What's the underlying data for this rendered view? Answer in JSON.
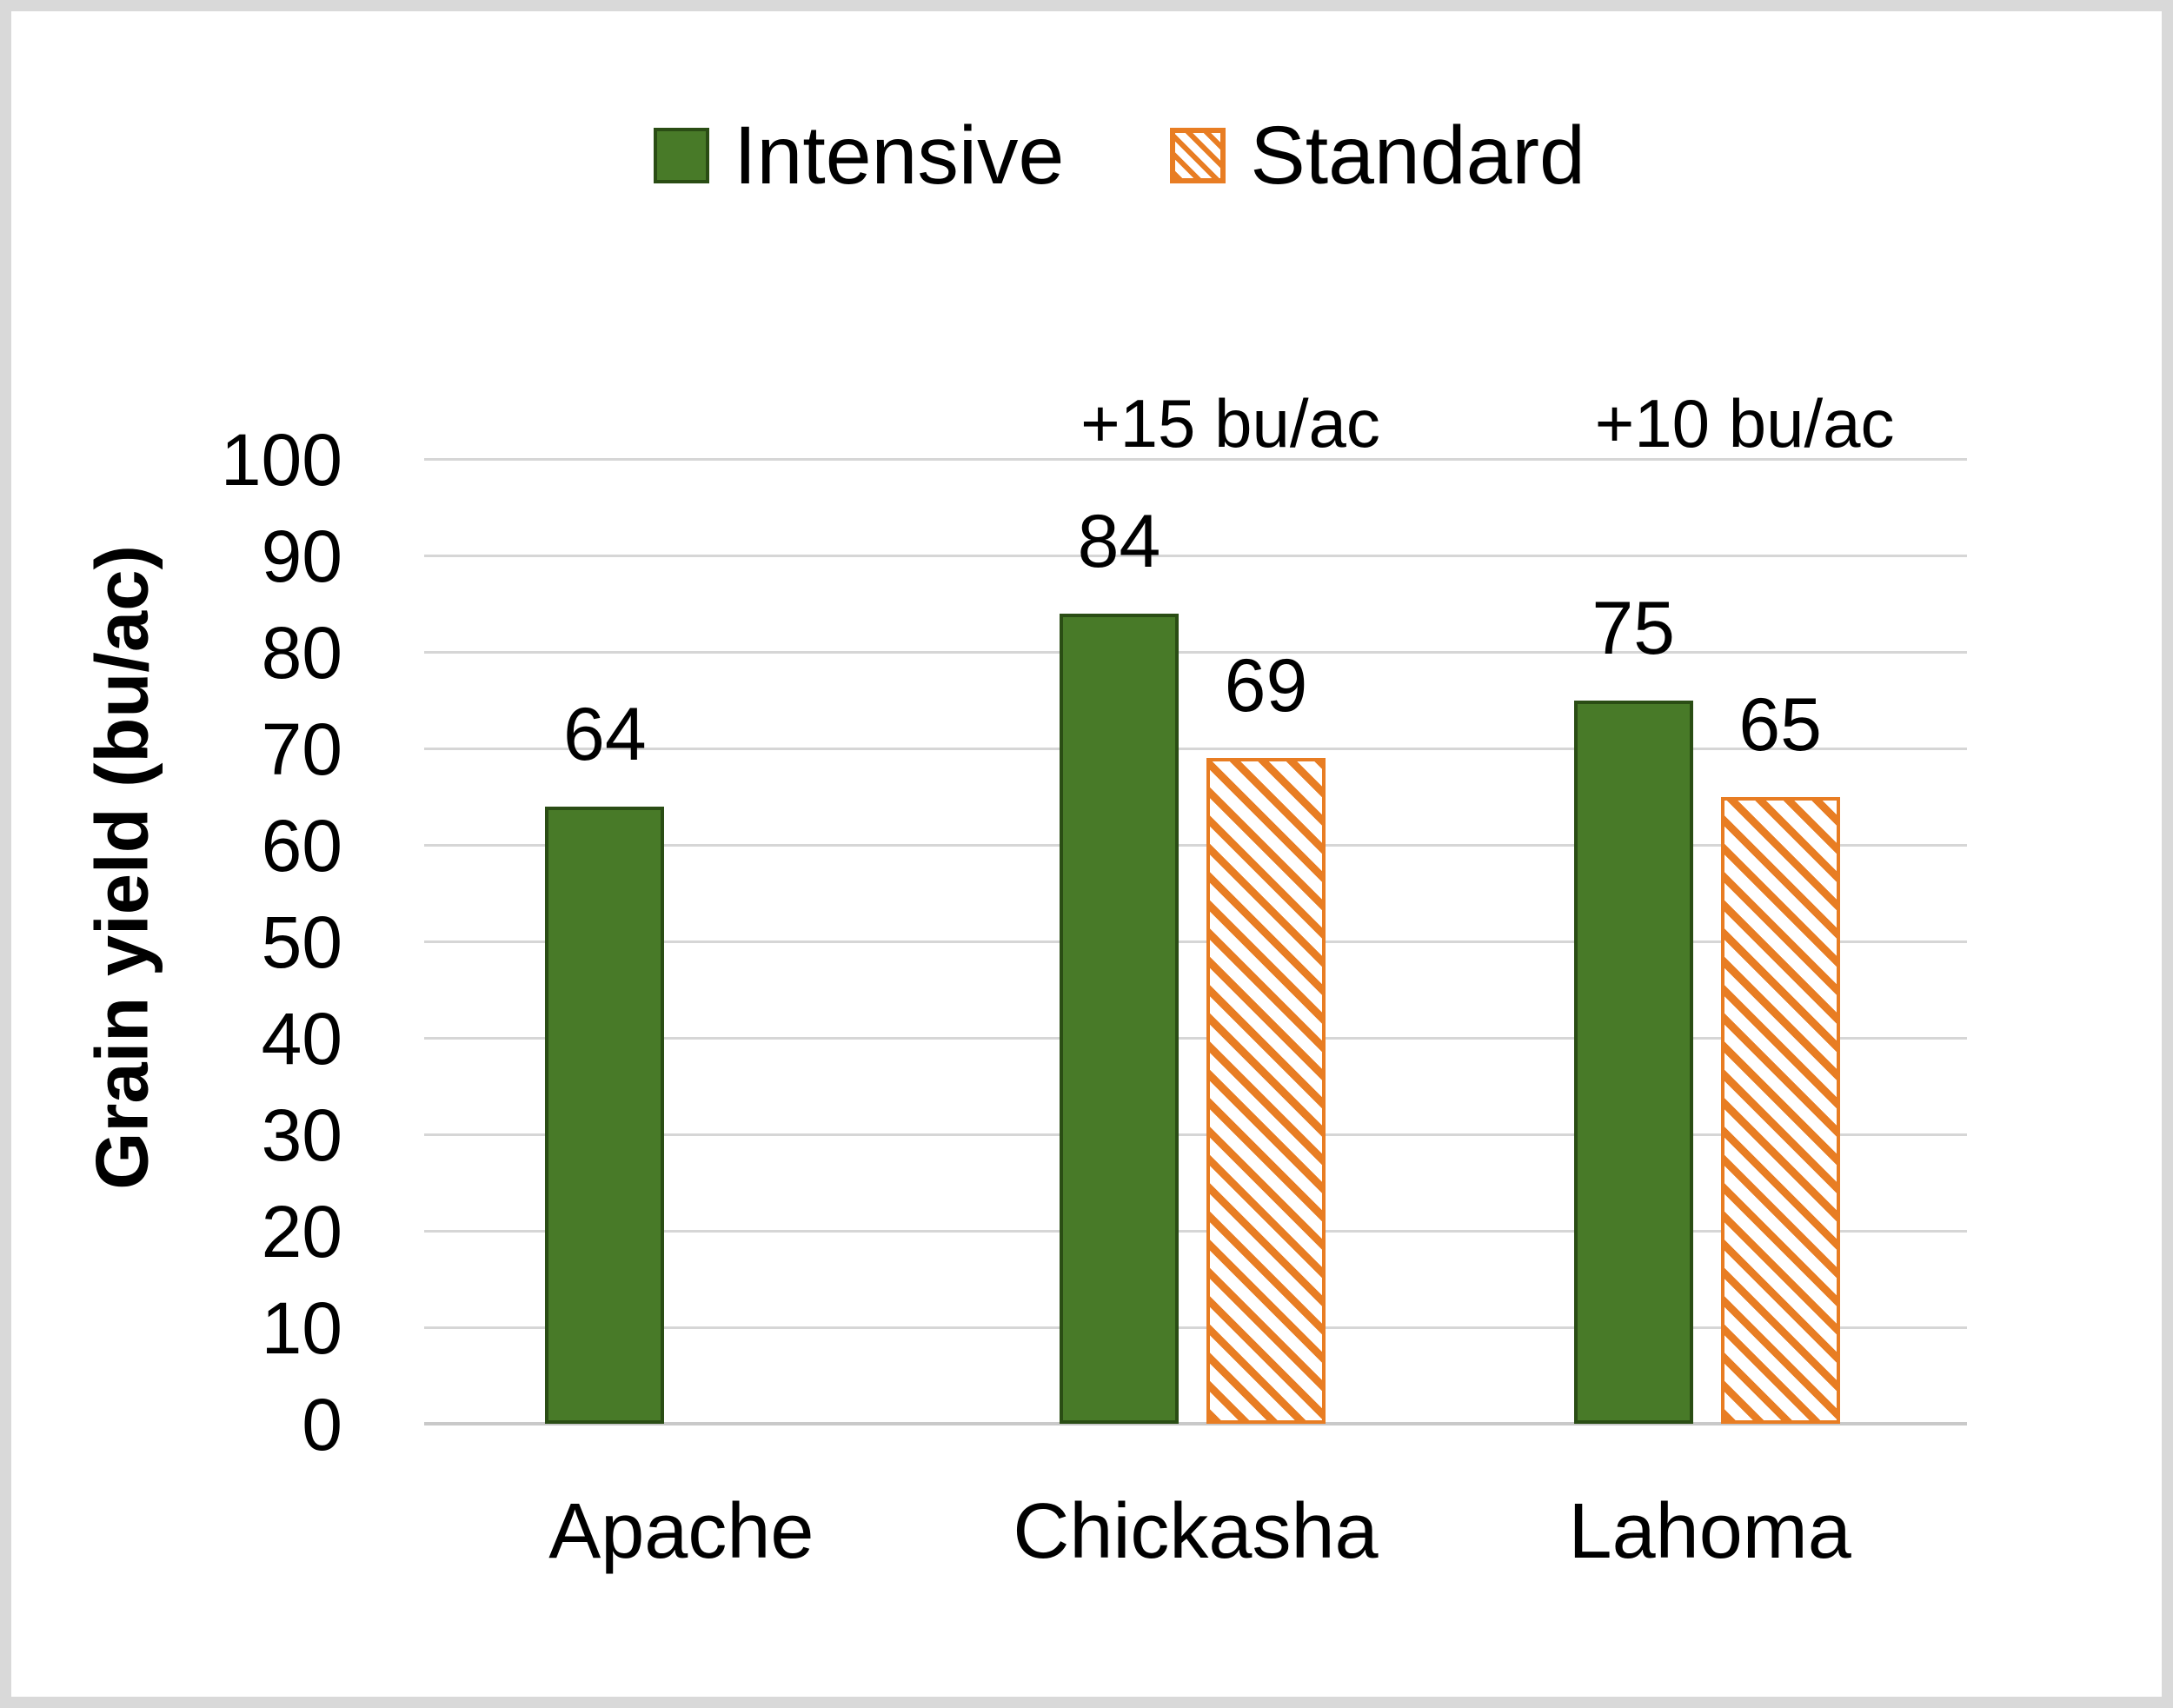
{
  "page": {
    "background": "#ffffff",
    "frame_border_color": "#d9d9d9"
  },
  "legend": {
    "position": "top-center",
    "items": [
      {
        "label": "Intensive",
        "swatch": "solid",
        "color": "#487a28"
      },
      {
        "label": "Standard",
        "swatch": "diagonal-hatch",
        "color": "#e87d23"
      }
    ]
  },
  "chart_data": {
    "type": "bar",
    "title": "",
    "xlabel": "",
    "ylabel": "Grain yield (bu/ac)",
    "ylim": [
      0,
      100
    ],
    "yticks": [
      0,
      10,
      20,
      30,
      40,
      50,
      60,
      70,
      80,
      90,
      100
    ],
    "grid": true,
    "legend_position": "top-center",
    "categories": [
      "Apache",
      "Chickasha",
      "Lahoma"
    ],
    "series": [
      {
        "name": "Intensive",
        "pattern": "solid",
        "fill": "#487a28",
        "border": "#2a4d14",
        "values": [
          64,
          84,
          75
        ]
      },
      {
        "name": "Standard",
        "pattern": "diagonal-hatch",
        "fill": "#e87d23",
        "border": "#e87d23",
        "values": [
          null,
          69,
          65
        ]
      }
    ],
    "bar_value_labels_shown": true,
    "annotations": [
      {
        "category": "Chickasha",
        "text": "+15 bu/ac"
      },
      {
        "category": "Lahoma",
        "text": "+10 bu/ac"
      }
    ]
  },
  "colors": {
    "gridline": "#d6d6d6",
    "axis_line": "#c9c9c9",
    "text": "#000000"
  }
}
